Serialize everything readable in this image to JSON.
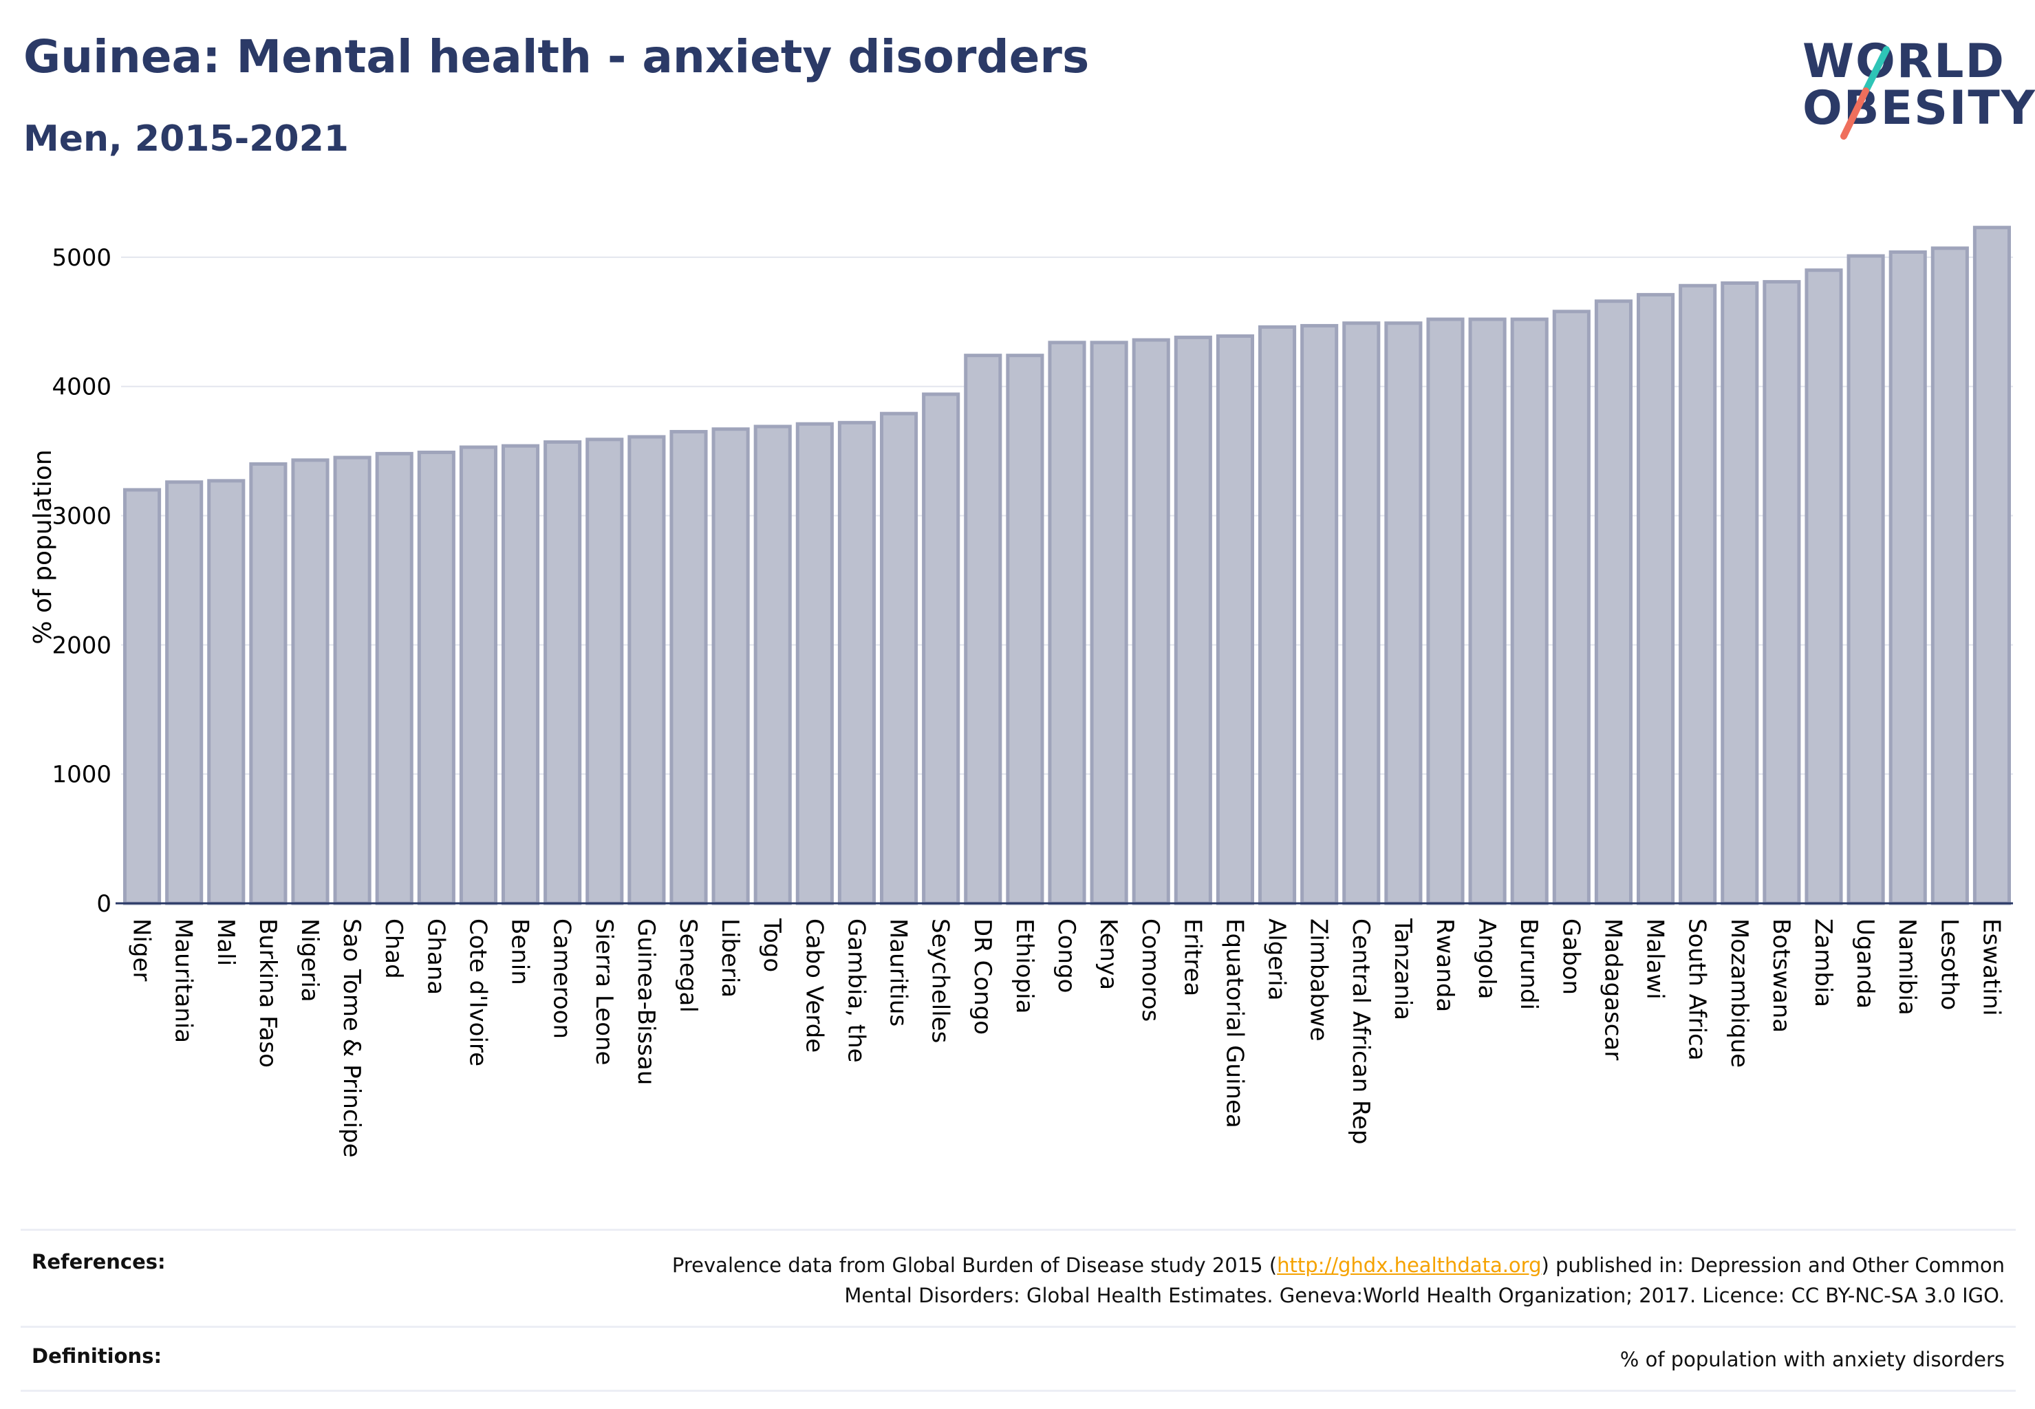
{
  "header": {
    "title": "Guinea: Mental health - anxiety disorders",
    "subtitle": "Men, 2015-2021"
  },
  "logo": {
    "line1": "WORLD",
    "line2": "OBESITY"
  },
  "colors": {
    "title": "#2b3a67",
    "bar_fill": "#bcc0cf",
    "bar_stroke": "#9fa4bb",
    "grid": "#e3e6ee",
    "axis": "#2b3a67",
    "link": "#f5a200",
    "logo_slash_top": "#2ec4b6",
    "logo_slash_bottom": "#ef6f5c"
  },
  "chart_data": {
    "type": "bar",
    "ylabel": "% of population",
    "ylim": [
      0,
      5500
    ],
    "yticks": [
      "0",
      "1000",
      "2000",
      "3000",
      "4000",
      "5000"
    ],
    "grid": true,
    "categories": [
      "Niger",
      "Mauritania",
      "Mali",
      "Burkina Faso",
      "Nigeria",
      "Sao Tome & Principe",
      "Chad",
      "Ghana",
      "Cote d'Ivoire",
      "Benin",
      "Cameroon",
      "Sierra Leone",
      "Guinea-Bissau",
      "Senegal",
      "Liberia",
      "Togo",
      "Cabo Verde",
      "Gambia, the",
      "Mauritius",
      "Seychelles",
      "DR Congo",
      "Ethiopia",
      "Congo",
      "Kenya",
      "Comoros",
      "Eritrea",
      "Equatorial Guinea",
      "Algeria",
      "Zimbabwe",
      "Central African Rep",
      "Tanzania",
      "Rwanda",
      "Angola",
      "Burundi",
      "Gabon",
      "Madagascar",
      "Malawi",
      "South Africa",
      "Mozambique",
      "Botswana",
      "Zambia",
      "Uganda",
      "Namibia",
      "Lesotho",
      "Eswatini"
    ],
    "values": [
      3200,
      3260,
      3270,
      3400,
      3430,
      3450,
      3480,
      3490,
      3530,
      3540,
      3570,
      3590,
      3610,
      3650,
      3670,
      3690,
      3710,
      3720,
      3790,
      3940,
      4240,
      4240,
      4340,
      4340,
      4360,
      4380,
      4390,
      4460,
      4470,
      4490,
      4490,
      4520,
      4520,
      4520,
      4580,
      4660,
      4710,
      4780,
      4800,
      4810,
      4900,
      5010,
      5040,
      5070,
      5230
    ]
  },
  "references": {
    "label": "References:",
    "text_before_link": "Prevalence data from Global Burden of Disease study 2015 (",
    "link": "http://ghdx.healthdata.org",
    "text_after_link": ") published in: Depression and Other Common",
    "line2": "Mental Disorders: Global Health Estimates. Geneva:World Health Organization; 2017. Licence: CC BY-NC-SA 3.0 IGO."
  },
  "definitions": {
    "label": "Definitions:",
    "text": "% of population with anxiety disorders"
  }
}
